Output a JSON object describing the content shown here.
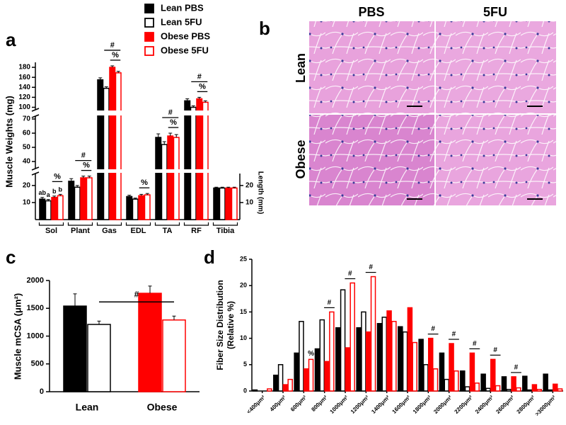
{
  "chart_data": [
    {
      "type": "broken-bar",
      "label": "a",
      "ylabel": "Muscle Weights (mg)",
      "categories": [
        "Sol",
        "Plant",
        "Gas",
        "EDL",
        "TA",
        "RF",
        "Tibia"
      ],
      "series": [
        {
          "name": "Lean PBS",
          "color": "#000000",
          "filled": true,
          "values": [
            12,
            22.5,
            155,
            13.5,
            57,
            113,
            18.5
          ],
          "errors": [
            1,
            1.5,
            4,
            0.8,
            2.5,
            4,
            0.5
          ]
        },
        {
          "name": "Lean 5FU",
          "color": "#000000",
          "filled": false,
          "values": [
            11,
            19,
            138,
            12,
            52,
            100,
            18.5
          ],
          "errors": [
            0.8,
            1,
            3,
            0.6,
            2,
            3,
            0.5
          ]
        },
        {
          "name": "Obese PBS",
          "color": "#ff0000",
          "filled": true,
          "values": [
            13,
            24.5,
            180,
            14,
            58,
            117,
            18.5
          ],
          "errors": [
            0.8,
            1,
            3,
            0.8,
            2,
            3,
            0.5
          ]
        },
        {
          "name": "Obese 5FU",
          "color": "#ff0000",
          "filled": false,
          "values": [
            14,
            24.5,
            169,
            14.5,
            57,
            110,
            18.5
          ],
          "errors": [
            0.8,
            1,
            3,
            0.8,
            2,
            3,
            0.5
          ]
        }
      ],
      "ysegments": [
        {
          "ylim": [
            0,
            27
          ],
          "yticks": [
            10,
            20
          ]
        },
        {
          "ylim": [
            35,
            72
          ],
          "yticks": [
            40,
            50,
            60,
            70
          ]
        },
        {
          "ylim": [
            95,
            190
          ],
          "yticks": [
            100,
            120,
            140,
            160,
            180
          ]
        }
      ],
      "y2label": "Length (mm)",
      "y2lim": [
        0,
        27
      ],
      "y2ticks": [
        10,
        20
      ],
      "y2_categories": [
        "Tibia"
      ],
      "annotations": [
        {
          "text": "ab",
          "category": "Sol",
          "series": [
            0
          ]
        },
        {
          "text": "a",
          "category": "Sol",
          "series": [
            1
          ]
        },
        {
          "text": "b",
          "category": "Sol",
          "series": [
            2
          ]
        },
        {
          "text": "b",
          "category": "Sol",
          "series": [
            3
          ]
        },
        {
          "text": "%",
          "category": "Sol",
          "series": [
            2,
            3
          ]
        },
        {
          "text": "%",
          "category": "Plant",
          "series": [
            2,
            3
          ]
        },
        {
          "text": "#",
          "category": "Plant",
          "series": [
            1,
            3
          ]
        },
        {
          "text": "%",
          "category": "Gas",
          "series": [
            2,
            3
          ]
        },
        {
          "text": "#",
          "category": "Gas",
          "series": [
            1,
            3
          ]
        },
        {
          "text": "%",
          "category": "EDL",
          "series": [
            2,
            3
          ]
        },
        {
          "text": "%",
          "category": "TA",
          "series": [
            2,
            3
          ]
        },
        {
          "text": "#",
          "category": "TA",
          "series": [
            1,
            3
          ]
        },
        {
          "text": "%",
          "category": "RF",
          "series": [
            2,
            3
          ]
        },
        {
          "text": "#",
          "category": "RF",
          "series": [
            1,
            3
          ]
        }
      ]
    },
    {
      "type": "bar",
      "label": "c",
      "ylabel": "Muscle mCSA (μm²)",
      "categories": [
        "Lean",
        "Obese"
      ],
      "category_colors": [
        "#000000",
        "#ff0000"
      ],
      "series": [
        {
          "filled": true,
          "values": [
            1540,
            1770
          ],
          "errors": [
            220,
            130
          ]
        },
        {
          "filled": false,
          "values": [
            1210,
            1290
          ],
          "errors": [
            60,
            70
          ]
        }
      ],
      "ylim": [
        0,
        2000
      ],
      "yticks": [
        0,
        500,
        1000,
        1500,
        2000
      ],
      "annotations": [
        {
          "text": "#",
          "categories": [
            "Lean",
            "Obese"
          ],
          "series": [
            1
          ]
        }
      ]
    },
    {
      "type": "grouped-bar",
      "label": "d",
      "ylabel": [
        "Fiber Size Distribution",
        "(Relative %)"
      ],
      "categories": [
        "<400μm²",
        "400μm²",
        "600μm²",
        "800μm²",
        "1000μm²",
        "1200μm²",
        "1400μm²",
        "1600μm²",
        "1800μm²",
        "2000μm²",
        "2200μm²",
        "2400μm²",
        "2600μm²",
        "2800μm²",
        ">3000μm²"
      ],
      "series": [
        {
          "color": "#000000",
          "filled": true,
          "values": [
            0.2,
            3,
            7.2,
            8,
            12,
            12,
            12.8,
            12.2,
            9.8,
            7.2,
            3.8,
            3.2,
            2.7,
            2.8,
            3.2
          ]
        },
        {
          "color": "#000000",
          "filled": false,
          "values": [
            0,
            5,
            13.2,
            13.5,
            19.2,
            15,
            14,
            11.2,
            5,
            2.2,
            0.8,
            0.5,
            0.3,
            0.2,
            0.2
          ]
        },
        {
          "color": "#ff0000",
          "filled": true,
          "values": [
            0,
            1.2,
            4.2,
            5.6,
            8.2,
            11.2,
            15.2,
            15.8,
            10,
            9,
            7.2,
            6,
            2.7,
            1.2,
            1.3
          ]
        },
        {
          "color": "#ff0000",
          "filled": false,
          "values": [
            0.4,
            2.2,
            6,
            15,
            20.5,
            21.7,
            13.2,
            9.2,
            4.2,
            3.8,
            1.5,
            1,
            0.6,
            0.3,
            0.4
          ]
        }
      ],
      "ylim": [
        0,
        25
      ],
      "yticks": [
        0,
        5,
        10,
        15,
        20,
        25
      ],
      "annotations": [
        {
          "text": "%",
          "category": "600μm²",
          "series": [
            3
          ]
        },
        {
          "text": "#",
          "category": "800μm²",
          "series": [
            2,
            3
          ]
        },
        {
          "text": "#",
          "category": "1000μm²",
          "series": [
            2,
            3
          ]
        },
        {
          "text": "#",
          "category": "1200μm²",
          "series": [
            2,
            3
          ]
        },
        {
          "text": "#",
          "category": "1800μm²",
          "series": [
            2,
            3
          ]
        },
        {
          "text": "#",
          "category": "2000μm²",
          "series": [
            2,
            3
          ]
        },
        {
          "text": "#",
          "category": "2200μm²",
          "series": [
            2,
            3
          ]
        },
        {
          "text": "#",
          "category": "2400μm²",
          "series": [
            2,
            3
          ]
        },
        {
          "text": "#",
          "category": "2600μm²",
          "series": [
            2,
            3
          ]
        }
      ]
    }
  ],
  "image_panel": {
    "label": "b",
    "columns": [
      "PBS",
      "5FU"
    ],
    "rows": [
      "Lean",
      "Obese"
    ]
  }
}
